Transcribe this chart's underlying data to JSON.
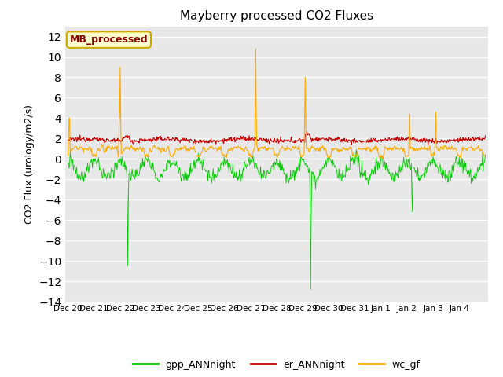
{
  "title": "Mayberry processed CO2 Fluxes",
  "ylabel": "CO2 Flux (urology/m2/s)",
  "ylim": [
    -14,
    13
  ],
  "yticks": [
    -14,
    -12,
    -10,
    -8,
    -6,
    -4,
    -2,
    0,
    2,
    4,
    6,
    8,
    10,
    12
  ],
  "bg_color": "#e8e8e8",
  "fig_color": "#ffffff",
  "legend_label": "MB_processed",
  "legend_text_color": "#8b0000",
  "legend_box_color": "#ffffcc",
  "legend_box_edge": "#ccaa00",
  "line_colors": {
    "gpp": "#00cc00",
    "er": "#cc0000",
    "wc": "#ffaa00"
  },
  "line_labels": {
    "gpp": "gpp_ANNnight",
    "er": "er_ANNnight",
    "wc": "wc_gf"
  },
  "x_tick_labels": [
    "Dec 20",
    "Dec 21",
    "Dec 22",
    "Dec 23",
    "Dec 24",
    "Dec 25",
    "Dec 26",
    "Dec 27",
    "Dec 28",
    "Dec 29",
    "Dec 30",
    "Dec 31",
    "Jan 1",
    "Jan 2",
    "Jan 3",
    "Jan 4"
  ]
}
